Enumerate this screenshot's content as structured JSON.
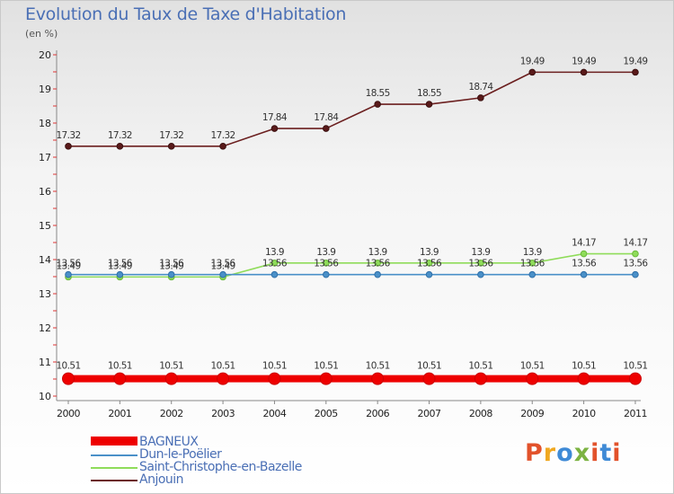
{
  "title": "Evolution du Taux de Taxe d'Habitation",
  "subtitle": "(en %)",
  "logo": {
    "p": "P",
    "r": "r",
    "o": "o",
    "x": "x",
    "i": "i",
    "t": "t",
    "i2": "i"
  },
  "chart_data": {
    "type": "line",
    "title": "Evolution du Taux de Taxe d'Habitation",
    "subtitle": "(en %)",
    "xlabel": "",
    "ylabel": "",
    "x": [
      "2000",
      "2001",
      "2002",
      "2003",
      "2004",
      "2005",
      "2006",
      "2007",
      "2008",
      "2009",
      "2010",
      "2011"
    ],
    "ylim": [
      10,
      20
    ],
    "yticks": [
      10,
      11,
      12,
      13,
      14,
      15,
      16,
      17,
      18,
      19,
      20
    ],
    "grid": false,
    "legend_position": "bottom-left",
    "series": [
      {
        "name": "BAGNEUX",
        "color": "#ee0000",
        "values": [
          10.51,
          10.51,
          10.51,
          10.51,
          10.51,
          10.51,
          10.51,
          10.51,
          10.51,
          10.51,
          10.51,
          10.51
        ],
        "labels": [
          "10.51",
          "10.51",
          "10.51",
          "10.51",
          "10.51",
          "10.51",
          "10.51",
          "10.51",
          "10.51",
          "10.51",
          "10.51",
          "10.51"
        ]
      },
      {
        "name": "Dun-le-Poëlier",
        "color": "#4a90c8",
        "values": [
          13.56,
          13.56,
          13.56,
          13.56,
          13.56,
          13.56,
          13.56,
          13.56,
          13.56,
          13.56,
          13.56,
          13.56
        ],
        "labels": [
          "13.56",
          "13.56",
          "13.56",
          "13.56",
          "13.56",
          "13.56",
          "13.56",
          "13.56",
          "13.56",
          "13.56",
          "13.56",
          "13.56"
        ]
      },
      {
        "name": "Saint-Christophe-en-Bazelle",
        "color": "#8fdc5a",
        "values": [
          13.49,
          13.49,
          13.49,
          13.49,
          13.9,
          13.9,
          13.9,
          13.9,
          13.9,
          13.9,
          14.17,
          14.17
        ],
        "labels": [
          "13.49",
          "13.49",
          "13.49",
          "13.49",
          "13.9",
          "13.9",
          "13.9",
          "13.9",
          "13.9",
          "13.9",
          "14.17",
          "14.17"
        ]
      },
      {
        "name": "Anjouin",
        "color": "#6b1f1f",
        "values": [
          17.32,
          17.32,
          17.32,
          17.32,
          17.84,
          17.84,
          18.55,
          18.55,
          18.74,
          19.49,
          19.49,
          19.49
        ],
        "labels": [
          "17.32",
          "17.32",
          "17.32",
          "17.32",
          "17.84",
          "17.84",
          "18.55",
          "18.55",
          "18.74",
          "19.49",
          "19.49",
          "19.49"
        ]
      }
    ]
  }
}
